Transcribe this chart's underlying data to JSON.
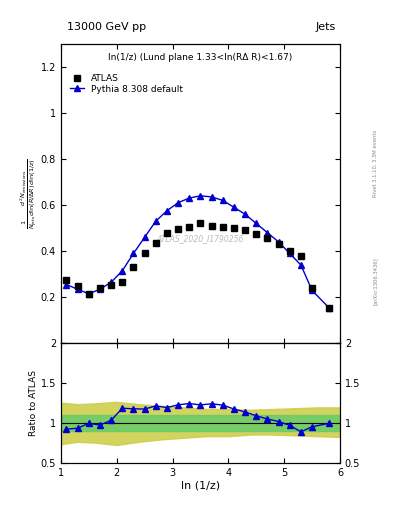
{
  "title": "13000 GeV pp",
  "title_right": "Jets",
  "panel_title": "ln(1/z) (Lund plane 1.33<ln(RΔ R)<1.67)",
  "watermark": "ATLAS_2020_I1790256",
  "right_label_top": "Rivet 3.1.10, 3.3M events",
  "arxiv_label": "[arXiv:1306.3436]",
  "ylabel_main": "$\\frac{1}{N_{\\mathrm{jets}}}\\frac{d^2 N_{\\mathrm{emissions}}}{d\\ln(R/\\Delta R)\\,d\\ln(1/z)}$",
  "ylabel_ratio": "Ratio to ATLAS",
  "xlabel": "ln (1/z)",
  "xlim": [
    1.0,
    6.0
  ],
  "ylim_main": [
    0.0,
    1.3
  ],
  "ylim_ratio": [
    0.5,
    2.0
  ],
  "atlas_x": [
    1.1,
    1.3,
    1.5,
    1.7,
    1.9,
    2.1,
    2.3,
    2.5,
    2.7,
    2.9,
    3.1,
    3.3,
    3.5,
    3.7,
    3.9,
    4.1,
    4.3,
    4.5,
    4.7,
    4.9,
    5.1,
    5.3,
    5.5,
    5.8
  ],
  "atlas_y": [
    0.275,
    0.25,
    0.215,
    0.24,
    0.255,
    0.265,
    0.33,
    0.39,
    0.435,
    0.48,
    0.495,
    0.505,
    0.52,
    0.51,
    0.505,
    0.5,
    0.49,
    0.475,
    0.455,
    0.43,
    0.4,
    0.38,
    0.24,
    0.155
  ],
  "pythia_x": [
    1.1,
    1.3,
    1.5,
    1.7,
    1.9,
    2.1,
    2.3,
    2.5,
    2.7,
    2.9,
    3.1,
    3.3,
    3.5,
    3.7,
    3.9,
    4.1,
    4.3,
    4.5,
    4.7,
    4.9,
    5.1,
    5.3,
    5.5,
    5.8
  ],
  "pythia_y": [
    0.255,
    0.235,
    0.215,
    0.235,
    0.265,
    0.315,
    0.39,
    0.46,
    0.53,
    0.575,
    0.61,
    0.63,
    0.64,
    0.635,
    0.62,
    0.59,
    0.56,
    0.52,
    0.48,
    0.44,
    0.39,
    0.34,
    0.23,
    0.155
  ],
  "ratio_x": [
    1.1,
    1.3,
    1.5,
    1.7,
    1.9,
    2.1,
    2.3,
    2.5,
    2.7,
    2.9,
    3.1,
    3.3,
    3.5,
    3.7,
    3.9,
    4.1,
    4.3,
    4.5,
    4.7,
    4.9,
    5.1,
    5.3,
    5.5,
    5.8
  ],
  "ratio_y": [
    0.927,
    0.94,
    1.0,
    0.979,
    1.039,
    1.189,
    1.182,
    1.179,
    1.218,
    1.198,
    1.232,
    1.248,
    1.231,
    1.245,
    1.228,
    1.18,
    1.143,
    1.095,
    1.055,
    1.023,
    0.975,
    0.895,
    0.958,
    1.0
  ],
  "green_band_xlim": [
    1.0,
    6.0
  ],
  "green_band_ylow": 0.9,
  "green_band_yhigh": 1.1,
  "yellow_band_x": [
    1.0,
    1.3,
    1.6,
    2.0,
    2.4,
    2.8,
    3.2,
    3.6,
    4.0,
    4.4,
    4.8,
    5.2,
    5.6,
    6.0
  ],
  "yellow_band_ylow": [
    0.74,
    0.77,
    0.76,
    0.73,
    0.77,
    0.8,
    0.82,
    0.84,
    0.84,
    0.86,
    0.86,
    0.85,
    0.84,
    0.83
  ],
  "yellow_band_yhigh": [
    1.26,
    1.24,
    1.25,
    1.27,
    1.24,
    1.22,
    1.2,
    1.18,
    1.18,
    1.17,
    1.18,
    1.19,
    1.2,
    1.2
  ],
  "atlas_color": "black",
  "pythia_color": "#0000cc",
  "green_color": "#66cc66",
  "yellow_color": "#cccc44",
  "bg_color": "white"
}
